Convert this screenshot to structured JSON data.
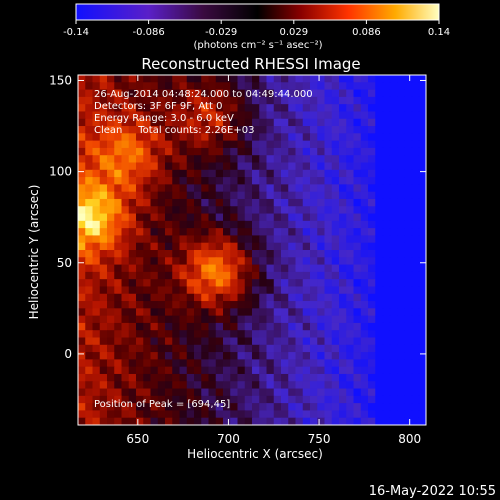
{
  "colorbar": {
    "ticks": [
      "-0.14",
      "-0.086",
      "-0.029",
      "0.029",
      "0.086",
      "0.14"
    ],
    "unit_label": "(photons cm⁻² s⁻¹ asec⁻²)",
    "min": -0.14,
    "max": 0.14
  },
  "chart_data": {
    "type": "heatmap",
    "title": "Reconstructed RHESSI Image",
    "xlabel": "Heliocentric X (arcsec)",
    "ylabel": "Heliocentric Y (arcsec)",
    "xlim": [
      617,
      809
    ],
    "ylim": [
      -39,
      153
    ],
    "x_ticks": [
      "650",
      "700",
      "750",
      "800"
    ],
    "y_ticks": [
      "150",
      "100",
      "50",
      "0"
    ],
    "x_tick_values": [
      650,
      700,
      750,
      800
    ],
    "y_tick_values": [
      150,
      100,
      50,
      0
    ],
    "annotations": [
      "26-Aug-2014 04:48:24.000 to 04:49:44.000",
      "Detectors: 3F 6F 9F, Att 0",
      "Energy Range: 3.0 - 6.0 keV",
      "Clean     Total counts: 2.26E+03"
    ],
    "peak_label": "Position of Peak = [694,45]",
    "peak": [
      694,
      45
    ],
    "bright_sources": [
      {
        "x": 694,
        "y": 45,
        "level": "peak"
      },
      {
        "x": 624,
        "y": 75,
        "level": "high"
      },
      {
        "x": 690,
        "y": 130,
        "level": "medium"
      },
      {
        "x": 645,
        "y": 110,
        "level": "medium"
      }
    ],
    "colormap": "blue-purple-red-orange-yellow-white"
  },
  "footer": {
    "timestamp": "16-May-2022 10:55"
  }
}
